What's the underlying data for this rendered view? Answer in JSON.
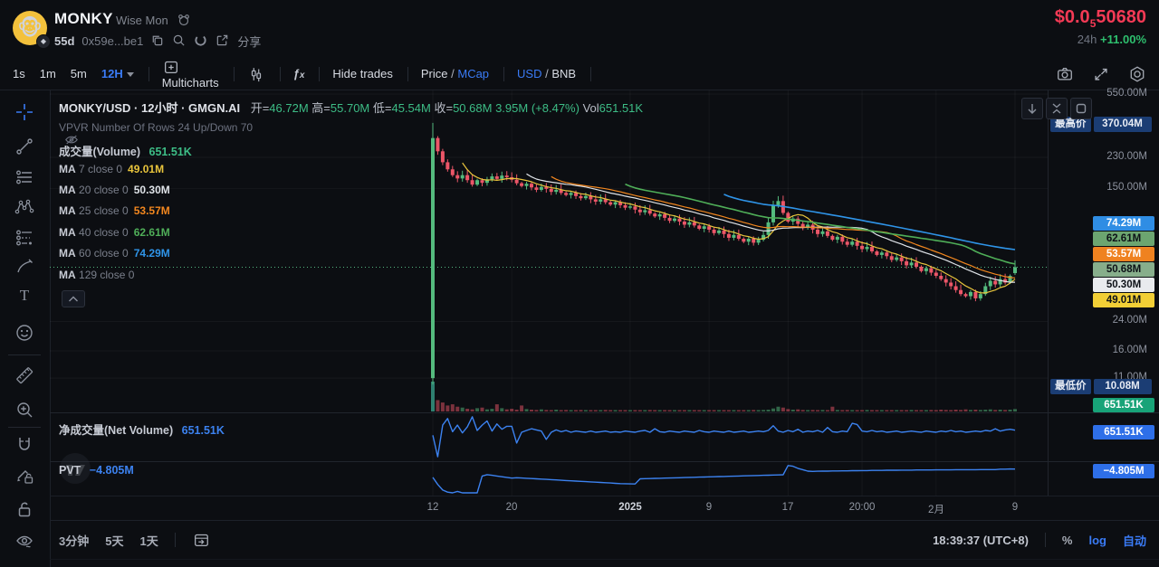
{
  "header": {
    "symbol": "MONKY",
    "name": "Wise Mon",
    "age": "55d",
    "address": "0x59e...be1",
    "share": "分享",
    "price": {
      "prefix": "$0.0",
      "sub": "5",
      "digits": "50680"
    },
    "change_period": "24h",
    "change": "+11.00%"
  },
  "toolbar": {
    "interval_1s": "1s",
    "interval_1m": "1m",
    "interval_5m": "5m",
    "interval_12h": "12H",
    "multicharts": "Multicharts",
    "hide_trades": "Hide trades",
    "price_label": "Price",
    "mcap_label": "MCap",
    "usd_label": "USD",
    "bnb_label": "BNB",
    "slash": "/"
  },
  "legend": {
    "title": "MONKY/USD · 12小时 · GMGN.AI",
    "ohlc": [
      {
        "l": "开=",
        "v": "46.72M"
      },
      {
        "l": "高=",
        "v": "55.70M"
      },
      {
        "l": "低=",
        "v": "45.54M"
      },
      {
        "l": "收=",
        "v": "50.68M"
      }
    ],
    "change": "3.95M (+8.47%)",
    "vol_label": "Vol",
    "vol_value": "651.51K",
    "vpvr": "VPVR Number Of Rows 24 Up/Down 70",
    "volume_label": "成交量(Volume)",
    "volume_value": "651.51K",
    "ma_rows": [
      {
        "name": "MA",
        "detail": "7 close 0",
        "value": "49.01M",
        "color": "#e8c43c"
      },
      {
        "name": "MA",
        "detail": "20 close 0",
        "value": "50.30M",
        "color": "#dfe3e8"
      },
      {
        "name": "MA",
        "detail": "25 close 0",
        "value": "53.57M",
        "color": "#f2871f"
      },
      {
        "name": "MA",
        "detail": "40 close 0",
        "value": "62.61M",
        "color": "#4fae58"
      },
      {
        "name": "MA",
        "detail": "60 close 0",
        "value": "74.29M",
        "color": "#2f94e8"
      },
      {
        "name": "MA",
        "detail": "129 close 0",
        "value": "",
        "color": "#868b96"
      }
    ],
    "net_volume_label": "净成交量(Net Volume)",
    "net_volume_value": "651.51K",
    "pvt_label": "PVT",
    "pvt_value": "−4.805M"
  },
  "price_axis": {
    "high_label": "最高价",
    "high_value": "370.04M",
    "low_label": "最低价",
    "low_value": "10.08M",
    "badges": [
      {
        "value": "74.29M",
        "bg": "#2f8de4",
        "fg": "#ffffff"
      },
      {
        "value": "62.61M",
        "bg": "#6ca570",
        "fg": "#0d1117"
      },
      {
        "value": "53.57M",
        "bg": "#ef8220",
        "fg": "#ffffff"
      },
      {
        "value": "50.68M",
        "bg": "#87ae8b",
        "fg": "#0d1117"
      },
      {
        "value": "50.30M",
        "bg": "#e9ebee",
        "fg": "#0d1117"
      },
      {
        "value": "49.01M",
        "bg": "#f2cf36",
        "fg": "#0d1117"
      }
    ],
    "volume_badge": {
      "value": "651.51K",
      "bg": "#18a378",
      "fg": "#ffffff"
    },
    "net_volume_badge": {
      "value": "651.51K",
      "bg": "#2e6fe8",
      "fg": "#ffffff"
    },
    "pvt_badge": {
      "value": "−4.805M",
      "bg": "#2e6fe8",
      "fg": "#ffffff"
    }
  },
  "bottom_bar": {
    "range_3m": "3分钟",
    "range_5d": "5天",
    "range_1d": "1天",
    "clock": "18:39:37 (UTC+8)",
    "percent": "%",
    "log": "log",
    "auto": "自动"
  },
  "chart_data": {
    "type": "candlestick",
    "symbol": "MONKY/USD",
    "interval": "12小时",
    "scale": "log",
    "y_unit": "market cap, M USD",
    "price_ticks": {
      "labels": [
        "550.00M",
        "230.00M",
        "150.00M",
        "24.00M",
        "16.00M",
        "11.00M"
      ],
      "values": [
        550,
        230,
        150,
        24,
        16,
        11
      ]
    },
    "time_ticks": [
      {
        "label": "12",
        "idx": 0
      },
      {
        "label": "20",
        "idx": 16
      },
      {
        "label": "2025",
        "idx": 40,
        "bold": true
      },
      {
        "label": "9",
        "idx": 56
      },
      {
        "label": "17",
        "idx": 72
      },
      {
        "label": "20:00",
        "idx": 87
      },
      {
        "label": "2月",
        "idx": 102
      },
      {
        "label": "9",
        "idx": 118
      }
    ],
    "all_time_high_m": 370.04,
    "all_time_low_m": 10.08,
    "last_price_m": 50.68,
    "first_candle": {
      "open": 11,
      "high": 370.04,
      "low": 10.08,
      "close": 300
    },
    "last_candle": {
      "open": 46.72,
      "high": 55.7,
      "low": 45.54,
      "close": 50.68
    },
    "closes": [
      300,
      250,
      215,
      195,
      180,
      172,
      180,
      168,
      158,
      168,
      162,
      170,
      177,
      171,
      179,
      175,
      169,
      161,
      155,
      160,
      152,
      147,
      153,
      149,
      143,
      147,
      141,
      137,
      141,
      135,
      131,
      135,
      129,
      125,
      129,
      124,
      120,
      124,
      119,
      115,
      117,
      112,
      108,
      111,
      106,
      102,
      105,
      100,
      96,
      99,
      95,
      91,
      94,
      90,
      86,
      89,
      85,
      81,
      84,
      80,
      76,
      79,
      75,
      72,
      75,
      71,
      74,
      79,
      94,
      119,
      126,
      107,
      95,
      99,
      92,
      87,
      91,
      85,
      80,
      83,
      78,
      74,
      77,
      72,
      69,
      72,
      68,
      65,
      67,
      63,
      60,
      62,
      59,
      56,
      58,
      55,
      52,
      54,
      51,
      48,
      50,
      47,
      45,
      43,
      41,
      39,
      37,
      35,
      34,
      36,
      33,
      35,
      39,
      42,
      40,
      43,
      41,
      45,
      50.68
    ],
    "volumes_rel": [
      1.0,
      0.38,
      0.3,
      0.2,
      0.24,
      0.16,
      0.13,
      0.09,
      0.07,
      0.11,
      0.13,
      0.07,
      0.09,
      0.24,
      0.11,
      0.07,
      0.09,
      0.06,
      0.2,
      0.08,
      0.06,
      0.05,
      0.07,
      0.05,
      0.04,
      0.06,
      0.04,
      0.05,
      0.04,
      0.03,
      0.05,
      0.04,
      0.03,
      0.04,
      0.03,
      0.05,
      0.03,
      0.04,
      0.03,
      0.03,
      0.04,
      0.03,
      0.04,
      0.03,
      0.05,
      0.03,
      0.04,
      0.03,
      0.03,
      0.04,
      0.03,
      0.04,
      0.03,
      0.03,
      0.04,
      0.03,
      0.03,
      0.04,
      0.03,
      0.03,
      0.04,
      0.03,
      0.04,
      0.03,
      0.03,
      0.05,
      0.04,
      0.05,
      0.06,
      0.1,
      0.16,
      0.13,
      0.08,
      0.06,
      0.07,
      0.05,
      0.04,
      0.05,
      0.04,
      0.05,
      0.04,
      0.16,
      0.05,
      0.04,
      0.05,
      0.04,
      0.03,
      0.04,
      0.05,
      0.03,
      0.04,
      0.03,
      0.04,
      0.03,
      0.04,
      0.03,
      0.04,
      0.05,
      0.04,
      0.03,
      0.04,
      0.05,
      0.04,
      0.06,
      0.05,
      0.04,
      0.06,
      0.05,
      0.07,
      0.05,
      0.06,
      0.05,
      0.06,
      0.07,
      0.05,
      0.06,
      0.05,
      0.06,
      0.08
    ],
    "net_volume_k": [
      -200,
      -3800,
      1500,
      2600,
      400,
      1500,
      200,
      1200,
      2900,
      600,
      1500,
      2200,
      500,
      1700,
      800,
      1300,
      1300,
      -1500,
      300,
      600,
      900,
      700,
      500,
      -900,
      300,
      700,
      400,
      600,
      300,
      500,
      400,
      300,
      500,
      300,
      400,
      500,
      300,
      400,
      300,
      500,
      400,
      300,
      500,
      600,
      300,
      900,
      400,
      300,
      500,
      400,
      300,
      500,
      400,
      300,
      600,
      400,
      300,
      500,
      400,
      300,
      500,
      300,
      400,
      500,
      300,
      400,
      500,
      400,
      600,
      1400,
      500,
      300,
      600,
      400,
      800,
      300,
      500,
      400,
      600,
      300,
      1100,
      400,
      300,
      500,
      400,
      1800,
      1600,
      500,
      400,
      600,
      400,
      500,
      300,
      400,
      500,
      300,
      400,
      500,
      400,
      300,
      500,
      400,
      300,
      500,
      400,
      600,
      400,
      500,
      300,
      400,
      500,
      400,
      600,
      500,
      900,
      500,
      700,
      800,
      651.51
    ],
    "pvt_m": [
      -5.4,
      -5.9,
      -6.3,
      -6.45,
      -6.5,
      -6.4,
      -6.55,
      -6.6,
      -6.55,
      -6.5,
      -5.3,
      -5.2,
      -5.25,
      -5.3,
      -5.35,
      -5.4,
      -5.45,
      -5.42,
      -5.44,
      -5.46,
      -5.48,
      -5.5,
      -5.52,
      -5.54,
      -5.56,
      -5.58,
      -5.6,
      -5.62,
      -5.64,
      -5.66,
      -5.68,
      -5.7,
      -5.72,
      -5.74,
      -5.76,
      -5.78,
      -5.8,
      -5.82,
      -5.84,
      -5.85,
      -5.86,
      -5.87,
      -5.5,
      -5.49,
      -5.48,
      -5.47,
      -5.46,
      -5.45,
      -5.44,
      -5.43,
      -5.42,
      -5.41,
      -5.4,
      -5.39,
      -5.38,
      -5.37,
      -5.36,
      -5.35,
      -5.34,
      -5.33,
      -5.32,
      -5.31,
      -5.3,
      -5.29,
      -5.28,
      -5.27,
      -5.26,
      -5.25,
      -5.24,
      -5.23,
      -5.22,
      -5.21,
      -4.55,
      -4.6,
      -4.75,
      -4.85,
      -4.95,
      -4.97,
      -4.96,
      -4.95,
      -4.95,
      -4.94,
      -4.94,
      -4.93,
      -4.93,
      -4.92,
      -4.92,
      -4.91,
      -4.91,
      -4.9,
      -4.9,
      -4.9,
      -4.89,
      -4.89,
      -4.89,
      -4.88,
      -4.88,
      -4.88,
      -4.87,
      -4.87,
      -4.87,
      -4.87,
      -4.86,
      -4.86,
      -4.86,
      -4.86,
      -4.85,
      -4.85,
      -4.85,
      -4.85,
      -4.85,
      -4.84,
      -4.84,
      -4.84,
      -4.84,
      -4.81,
      -4.81,
      -4.8,
      -4.805
    ],
    "ma": [
      {
        "period": 7,
        "color": "#e8c43c",
        "last_m": 49.01
      },
      {
        "period": 20,
        "color": "#dfe3e8",
        "last_m": 50.3
      },
      {
        "period": 25,
        "color": "#f2871f",
        "last_m": 53.57
      },
      {
        "period": 40,
        "color": "#4fae58",
        "last_m": 62.61
      },
      {
        "period": 60,
        "color": "#2f94e8",
        "last_m": 74.29
      },
      {
        "period": 129,
        "color": "#868b96",
        "last_m": null
      }
    ],
    "colors": {
      "up": "#55bb7e",
      "down": "#ec5668",
      "volume_first": "#2e8070",
      "last_price_line": "#53b67f",
      "indicator_line": "#3c82f0",
      "grid": "rgba(255,255,255,0.045)"
    }
  }
}
